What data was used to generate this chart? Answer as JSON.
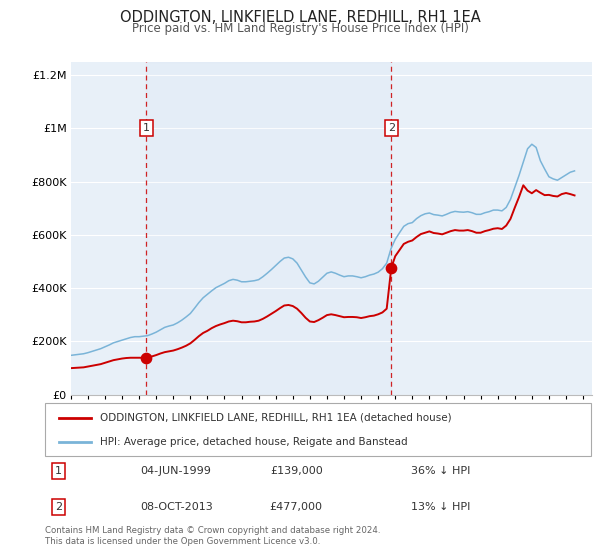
{
  "title": "ODDINGTON, LINKFIELD LANE, REDHILL, RH1 1EA",
  "subtitle": "Price paid vs. HM Land Registry's House Price Index (HPI)",
  "hpi_label": "HPI: Average price, detached house, Reigate and Banstead",
  "property_label": "ODDINGTON, LINKFIELD LANE, REDHILL, RH1 1EA (detached house)",
  "ylim": [
    0,
    1250000
  ],
  "xlim_start": 1995.0,
  "xlim_end": 2025.5,
  "plot_bg_color": "#e8f0f8",
  "grid_color": "#ffffff",
  "hpi_color": "#7ab4d8",
  "property_color": "#cc0000",
  "sale1_x": 1999.42,
  "sale1_y": 139000,
  "sale2_x": 2013.77,
  "sale2_y": 477000,
  "annotation1_date": "04-JUN-1999",
  "annotation1_price": "£139,000",
  "annotation1_pct": "36% ↓ HPI",
  "annotation2_date": "08-OCT-2013",
  "annotation2_price": "£477,000",
  "annotation2_pct": "13% ↓ HPI",
  "footer": "Contains HM Land Registry data © Crown copyright and database right 2024.\nThis data is licensed under the Open Government Licence v3.0.",
  "hpi_x": [
    1995.0,
    1995.25,
    1995.5,
    1995.75,
    1996.0,
    1996.25,
    1996.5,
    1996.75,
    1997.0,
    1997.25,
    1997.5,
    1997.75,
    1998.0,
    1998.25,
    1998.5,
    1998.75,
    1999.0,
    1999.25,
    1999.5,
    1999.75,
    2000.0,
    2000.25,
    2000.5,
    2000.75,
    2001.0,
    2001.25,
    2001.5,
    2001.75,
    2002.0,
    2002.25,
    2002.5,
    2002.75,
    2003.0,
    2003.25,
    2003.5,
    2003.75,
    2004.0,
    2004.25,
    2004.5,
    2004.75,
    2005.0,
    2005.25,
    2005.5,
    2005.75,
    2006.0,
    2006.25,
    2006.5,
    2006.75,
    2007.0,
    2007.25,
    2007.5,
    2007.75,
    2008.0,
    2008.25,
    2008.5,
    2008.75,
    2009.0,
    2009.25,
    2009.5,
    2009.75,
    2010.0,
    2010.25,
    2010.5,
    2010.75,
    2011.0,
    2011.25,
    2011.5,
    2011.75,
    2012.0,
    2012.25,
    2012.5,
    2012.75,
    2013.0,
    2013.25,
    2013.5,
    2013.75,
    2014.0,
    2014.25,
    2014.5,
    2014.75,
    2015.0,
    2015.25,
    2015.5,
    2015.75,
    2016.0,
    2016.25,
    2016.5,
    2016.75,
    2017.0,
    2017.25,
    2017.5,
    2017.75,
    2018.0,
    2018.25,
    2018.5,
    2018.75,
    2019.0,
    2019.25,
    2019.5,
    2019.75,
    2020.0,
    2020.25,
    2020.5,
    2020.75,
    2021.0,
    2021.25,
    2021.5,
    2021.75,
    2022.0,
    2022.25,
    2022.5,
    2022.75,
    2023.0,
    2023.25,
    2023.5,
    2023.75,
    2024.0,
    2024.25,
    2024.5
  ],
  "hpi_y": [
    148000,
    150000,
    152000,
    154000,
    158000,
    163000,
    168000,
    173000,
    180000,
    187000,
    195000,
    200000,
    205000,
    210000,
    215000,
    218000,
    218000,
    220000,
    222000,
    228000,
    235000,
    244000,
    253000,
    258000,
    262000,
    270000,
    280000,
    292000,
    305000,
    325000,
    346000,
    364000,
    377000,
    390000,
    402000,
    410000,
    418000,
    428000,
    433000,
    430000,
    424000,
    424000,
    426000,
    428000,
    432000,
    443000,
    456000,
    470000,
    485000,
    500000,
    513000,
    516000,
    510000,
    494000,
    468000,
    442000,
    420000,
    416000,
    426000,
    441000,
    456000,
    461000,
    456000,
    449000,
    443000,
    446000,
    446000,
    443000,
    439000,
    443000,
    449000,
    453000,
    460000,
    473000,
    494000,
    548000,
    583000,
    608000,
    632000,
    642000,
    646000,
    661000,
    672000,
    679000,
    682000,
    676000,
    674000,
    671000,
    677000,
    684000,
    688000,
    686000,
    685000,
    687000,
    683000,
    677000,
    677000,
    683000,
    687000,
    693000,
    693000,
    690000,
    703000,
    733000,
    778000,
    823000,
    873000,
    923000,
    940000,
    928000,
    878000,
    847000,
    818000,
    810000,
    805000,
    815000,
    825000,
    835000,
    840000
  ],
  "prop_x": [
    1995.0,
    1995.25,
    1995.5,
    1995.75,
    1996.0,
    1996.25,
    1996.5,
    1996.75,
    1997.0,
    1997.25,
    1997.5,
    1997.75,
    1998.0,
    1998.25,
    1998.5,
    1998.75,
    1999.0,
    1999.25,
    1999.42,
    1999.75,
    2000.0,
    2000.25,
    2000.5,
    2000.75,
    2001.0,
    2001.25,
    2001.5,
    2001.75,
    2002.0,
    2002.25,
    2002.5,
    2002.75,
    2003.0,
    2003.25,
    2003.5,
    2003.75,
    2004.0,
    2004.25,
    2004.5,
    2004.75,
    2005.0,
    2005.25,
    2005.5,
    2005.75,
    2006.0,
    2006.25,
    2006.5,
    2006.75,
    2007.0,
    2007.25,
    2007.5,
    2007.75,
    2008.0,
    2008.25,
    2008.5,
    2008.75,
    2009.0,
    2009.25,
    2009.5,
    2009.75,
    2010.0,
    2010.25,
    2010.5,
    2010.75,
    2011.0,
    2011.25,
    2011.5,
    2011.75,
    2012.0,
    2012.25,
    2012.5,
    2012.75,
    2013.0,
    2013.25,
    2013.5,
    2013.77,
    2014.0,
    2014.25,
    2014.5,
    2014.75,
    2015.0,
    2015.25,
    2015.5,
    2015.75,
    2016.0,
    2016.25,
    2016.5,
    2016.75,
    2017.0,
    2017.25,
    2017.5,
    2017.75,
    2018.0,
    2018.25,
    2018.5,
    2018.75,
    2019.0,
    2019.25,
    2019.5,
    2019.75,
    2020.0,
    2020.25,
    2020.5,
    2020.75,
    2021.0,
    2021.25,
    2021.5,
    2021.75,
    2022.0,
    2022.25,
    2022.5,
    2022.75,
    2023.0,
    2023.25,
    2023.5,
    2023.75,
    2024.0,
    2024.25,
    2024.5
  ],
  "prop_y": [
    100000,
    101000,
    102000,
    103000,
    106000,
    109000,
    112000,
    115000,
    120000,
    125000,
    130000,
    133000,
    136000,
    138000,
    139000,
    139000,
    139000,
    139000,
    139000,
    144000,
    149000,
    155000,
    160000,
    163000,
    166000,
    171000,
    177000,
    184000,
    193000,
    206000,
    220000,
    232000,
    240000,
    250000,
    258000,
    264000,
    269000,
    275000,
    278000,
    276000,
    272000,
    272000,
    274000,
    275000,
    278000,
    285000,
    294000,
    304000,
    314000,
    325000,
    335000,
    337000,
    333000,
    323000,
    307000,
    289000,
    275000,
    273000,
    280000,
    289000,
    299000,
    302000,
    299000,
    295000,
    291000,
    292000,
    292000,
    291000,
    288000,
    291000,
    295000,
    297000,
    302000,
    309000,
    323000,
    477000,
    520000,
    543000,
    566000,
    574000,
    579000,
    592000,
    603000,
    608000,
    613000,
    607000,
    605000,
    602000,
    608000,
    614000,
    618000,
    616000,
    616000,
    618000,
    614000,
    608000,
    608000,
    614000,
    618000,
    623000,
    625000,
    622000,
    635000,
    660000,
    702000,
    742000,
    786000,
    766000,
    756000,
    768000,
    758000,
    749000,
    750000,
    746000,
    744000,
    753000,
    757000,
    753000,
    748000
  ]
}
